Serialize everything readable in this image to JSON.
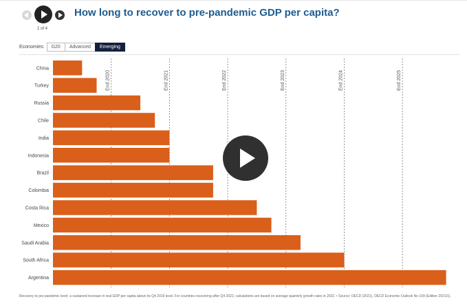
{
  "nav": {
    "counter": "1 of 4"
  },
  "title": "How long to recover to pre-pandemic GDP per capita?",
  "toolbar": {
    "label": "Economies:",
    "tabs": [
      {
        "label": "G20",
        "active": false
      },
      {
        "label": "Advanced",
        "active": false
      },
      {
        "label": "Emerging",
        "active": true
      }
    ]
  },
  "colors": {
    "bar": "#d95f1b",
    "title": "#1e5b8e",
    "active_tab": "#14213d",
    "gridline": "#777777"
  },
  "chart_data": {
    "type": "bar",
    "orientation": "horizontal",
    "value_unit": "quarters after Q4 2019",
    "categories": [
      "China",
      "Turkey",
      "Russia",
      "Chile",
      "India",
      "Indonesia",
      "Brazil",
      "Colombia",
      "Costa Rica",
      "Mexico",
      "Saudi Arabia",
      "South Africa",
      "Argentina"
    ],
    "values": [
      2,
      3,
      6,
      7,
      8,
      8,
      11,
      11,
      14,
      15,
      17,
      20,
      27
    ],
    "xlim": [
      0,
      27.3
    ],
    "reference_lines": [
      {
        "label": "End 2020",
        "value": 4
      },
      {
        "label": "End 2021",
        "value": 8
      },
      {
        "label": "End 2022",
        "value": 12
      },
      {
        "label": "End 2023",
        "value": 16
      },
      {
        "label": "End 2024",
        "value": 20
      },
      {
        "label": "End 2025",
        "value": 24
      }
    ],
    "grid": false,
    "legend": "none"
  },
  "footnote": "Recovery to pre-pandemic level: a sustained increase in real GDP per capita above its Q4 2019 level. For countries recovering after Q4 2022, calculations are based on average quarterly growth rates in 2022. • Source: OECD (2021), OECD Economic Outlook No 109 (Edition 2021/1)."
}
